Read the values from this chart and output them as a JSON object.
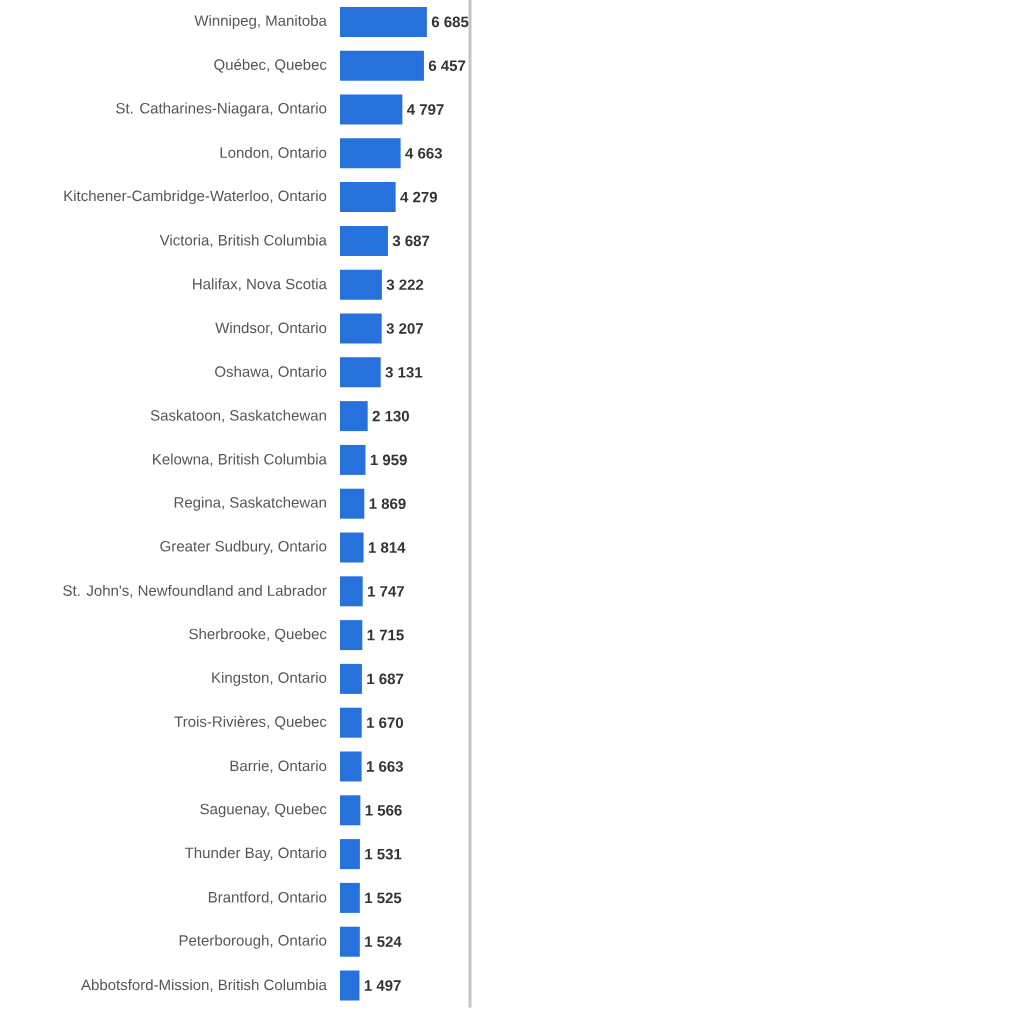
{
  "chart_data": {
    "type": "bar",
    "orientation": "horizontal",
    "categories": [
      "Winnipeg, Manitoba",
      "Québec, Quebec",
      "St. Catharines-Niagara, Ontario",
      "London, Ontario",
      "Kitchener-Cambridge-Waterloo, Ontario",
      "Victoria, British Columbia",
      "Halifax, Nova Scotia",
      "Windsor, Ontario",
      "Oshawa, Ontario",
      "Saskatoon, Saskatchewan",
      "Kelowna, British Columbia",
      "Regina, Saskatchewan",
      "Greater Sudbury, Ontario",
      "St. John's, Newfoundland and Labrador",
      "Sherbrooke, Quebec",
      "Kingston, Ontario",
      "Trois-Rivières, Quebec",
      "Barrie, Ontario",
      "Saguenay, Quebec",
      "Thunder Bay, Ontario",
      "Brantford, Ontario",
      "Peterborough, Ontario",
      "Abbotsford-Mission, British Columbia"
    ],
    "values": [
      6685,
      6457,
      4797,
      4663,
      4279,
      3687,
      3222,
      3207,
      3131,
      2130,
      1959,
      1869,
      1814,
      1747,
      1715,
      1687,
      1670,
      1663,
      1566,
      1531,
      1525,
      1524,
      1497
    ],
    "value_labels": [
      "6 685",
      "6 457",
      "4 797",
      "4 663",
      "4 279",
      "3 687",
      "3 222",
      "3 207",
      "3 131",
      "2 130",
      "1 959",
      "1 869",
      "1 814",
      "1 747",
      "1 715",
      "1 687",
      "1 670",
      "1 663",
      "1 566",
      "1 531",
      "1 525",
      "1 524",
      "1 497"
    ],
    "color": "#2671dc",
    "xlim": [
      0,
      10000
    ],
    "tick_labels": "y"
  }
}
